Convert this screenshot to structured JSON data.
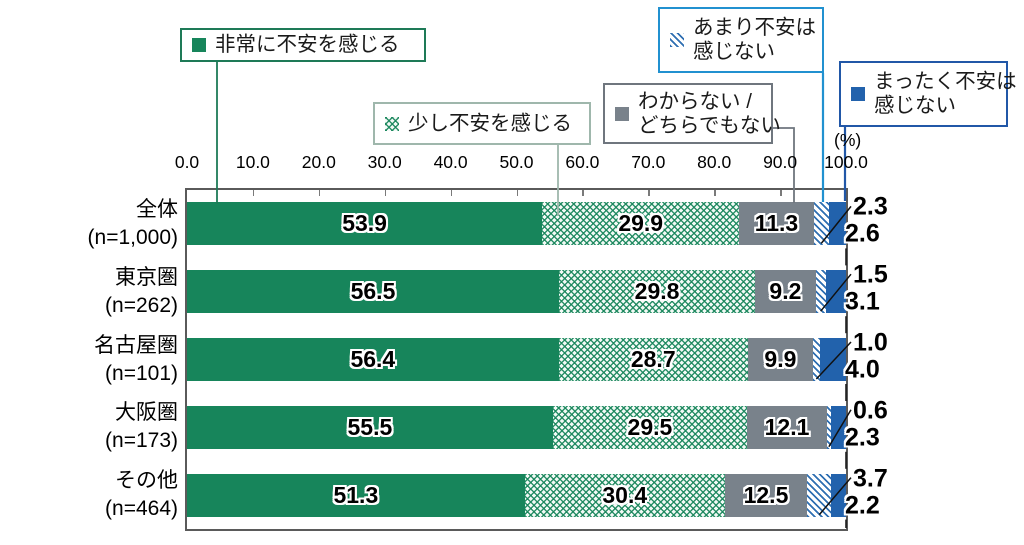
{
  "percent_unit_label": "(%)",
  "axis": {
    "tick_labels": [
      "0.0",
      "10.0",
      "20.0",
      "30.0",
      "40.0",
      "50.0",
      "60.0",
      "70.0",
      "80.0",
      "90.0",
      "100.0"
    ]
  },
  "legend": {
    "items": [
      {
        "line1": "非常に不安を感じる",
        "line2": "",
        "swatch": "solid-green",
        "border_color": "#1E7A57"
      },
      {
        "line1": "少し不安を感じる",
        "line2": "",
        "swatch": "hatch-green",
        "border_color": "#9FB7AC"
      },
      {
        "line1": "わからない /",
        "line2": "どちらでもない",
        "swatch": "solid-gray",
        "border_color": "#6F767E"
      },
      {
        "line1": "あまり不安は",
        "line2": "感じない",
        "swatch": "hatch-blue",
        "border_color": "#2191D0"
      },
      {
        "line1": "まったく不安は",
        "line2": "感じない",
        "swatch": "solid-blue",
        "border_color": "#2157A7"
      }
    ]
  },
  "chart_data": {
    "type": "bar",
    "stacked": true,
    "orientation": "horizontal",
    "xlim": [
      0,
      100
    ],
    "grid": false,
    "categories": [
      {
        "label": "全体",
        "n_label": "(n=1,000)"
      },
      {
        "label": "東京圏",
        "n_label": "(n=262)"
      },
      {
        "label": "名古屋圏",
        "n_label": "(n=101)"
      },
      {
        "label": "大阪圏",
        "n_label": "(n=173)"
      },
      {
        "label": "その他",
        "n_label": "(n=464)"
      }
    ],
    "series": [
      {
        "name": "非常に不安を感じる",
        "style": "solid-green",
        "label_placement": "inside",
        "values": [
          53.9,
          56.5,
          56.4,
          55.5,
          51.3
        ]
      },
      {
        "name": "少し不安を感じる",
        "style": "hatch-green",
        "label_placement": "inside",
        "values": [
          29.9,
          29.8,
          28.7,
          29.5,
          30.4
        ]
      },
      {
        "name": "わからない / どちらでもない",
        "style": "solid-gray",
        "label_placement": "inside",
        "values": [
          11.3,
          9.2,
          9.9,
          12.1,
          12.5
        ]
      },
      {
        "name": "あまり不安は感じない",
        "style": "hatch-blue",
        "label_placement": "outside-upper",
        "values": [
          2.3,
          1.5,
          1.0,
          0.6,
          3.7
        ]
      },
      {
        "name": "まったく不安は感じない",
        "style": "solid-blue",
        "label_placement": "outside-lower",
        "values": [
          2.6,
          3.1,
          4.0,
          2.3,
          2.2
        ]
      }
    ],
    "colors": {
      "green": "#17855B",
      "gray": "#79828B",
      "blue": "#2262AC",
      "hatch_green_line": "#2E8C63",
      "hatch_blue_line": "#2F6FB2",
      "plot_border": "#5a5a5a"
    }
  }
}
